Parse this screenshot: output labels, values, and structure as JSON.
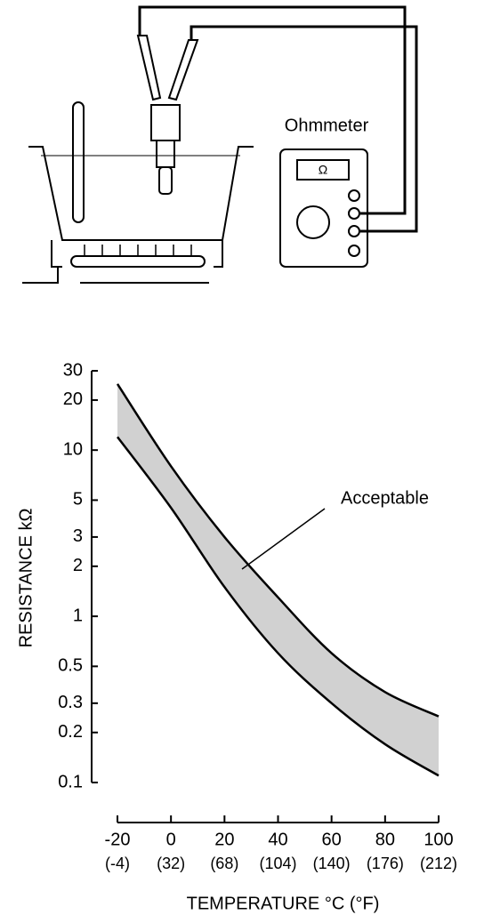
{
  "diagram": {
    "label": "Ohmmeter",
    "meter_symbol": "Ω"
  },
  "chart_data": {
    "type": "line",
    "ylabel": "RESISTANCE kΩ",
    "xlabel": "TEMPERATURE °C (°F)",
    "annotation": "Acceptable",
    "x": [
      -20,
      0,
      20,
      40,
      60,
      80,
      100
    ],
    "series": [
      {
        "color": "#000000",
        "values": [
          25,
          8,
          3,
          1.3,
          0.6,
          0.35,
          0.25
        ]
      },
      {
        "color": "#000000",
        "values": [
          12,
          4.5,
          1.5,
          0.6,
          0.3,
          0.17,
          0.11
        ]
      }
    ],
    "band_color": "#bdbdbd",
    "log_y": true,
    "xlim": [
      -20,
      100
    ],
    "xticks": [
      -20,
      0,
      20,
      40,
      60,
      80,
      100
    ],
    "x_secondary_labels": [
      "(-4)",
      "(32)",
      "(68)",
      "(104)",
      "(140)",
      "(176)",
      "(212)"
    ],
    "ylim": [
      0.1,
      30
    ],
    "yticks": [
      0.1,
      0.2,
      0.3,
      0.5,
      1,
      2,
      3,
      5,
      10,
      20,
      30
    ]
  }
}
